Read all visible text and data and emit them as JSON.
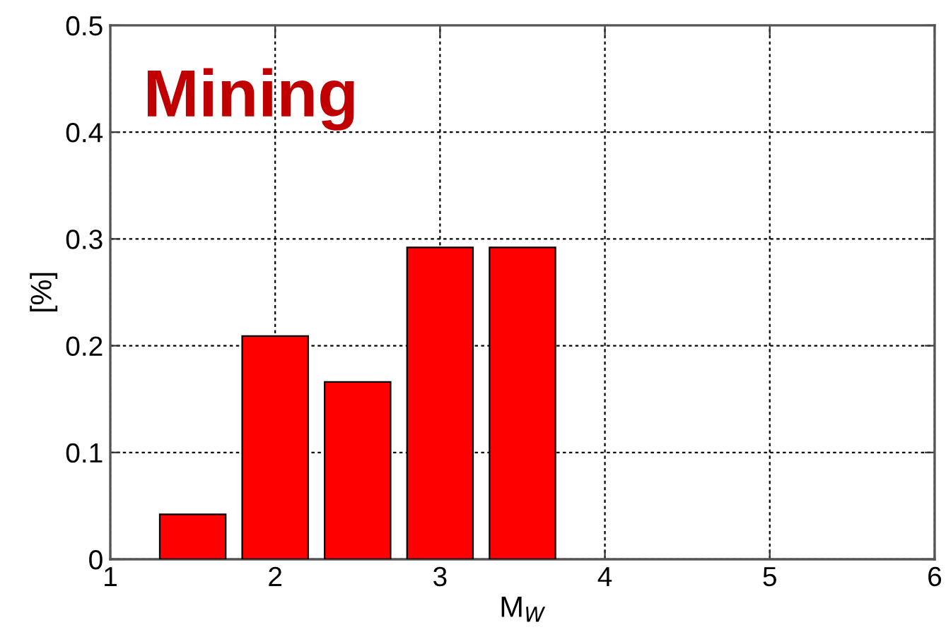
{
  "chart_data": {
    "type": "bar",
    "title": "Mining",
    "xlabel": "M$_{W}$",
    "ylabel": "[%]",
    "x": [
      1.5,
      2,
      2.5,
      3,
      3.5
    ],
    "series": [
      {
        "color": "#ff0000",
        "values": [
          0.042,
          0.209,
          0.166,
          0.292,
          0.292
        ]
      }
    ],
    "xlim": [
      1,
      6
    ],
    "xticks": [
      1,
      2,
      3,
      4,
      5,
      6
    ],
    "ylim": [
      0,
      0.5
    ],
    "yticks": [
      0,
      0.1,
      0.2,
      0.3,
      0.4,
      0.5
    ],
    "grid": true
  }
}
